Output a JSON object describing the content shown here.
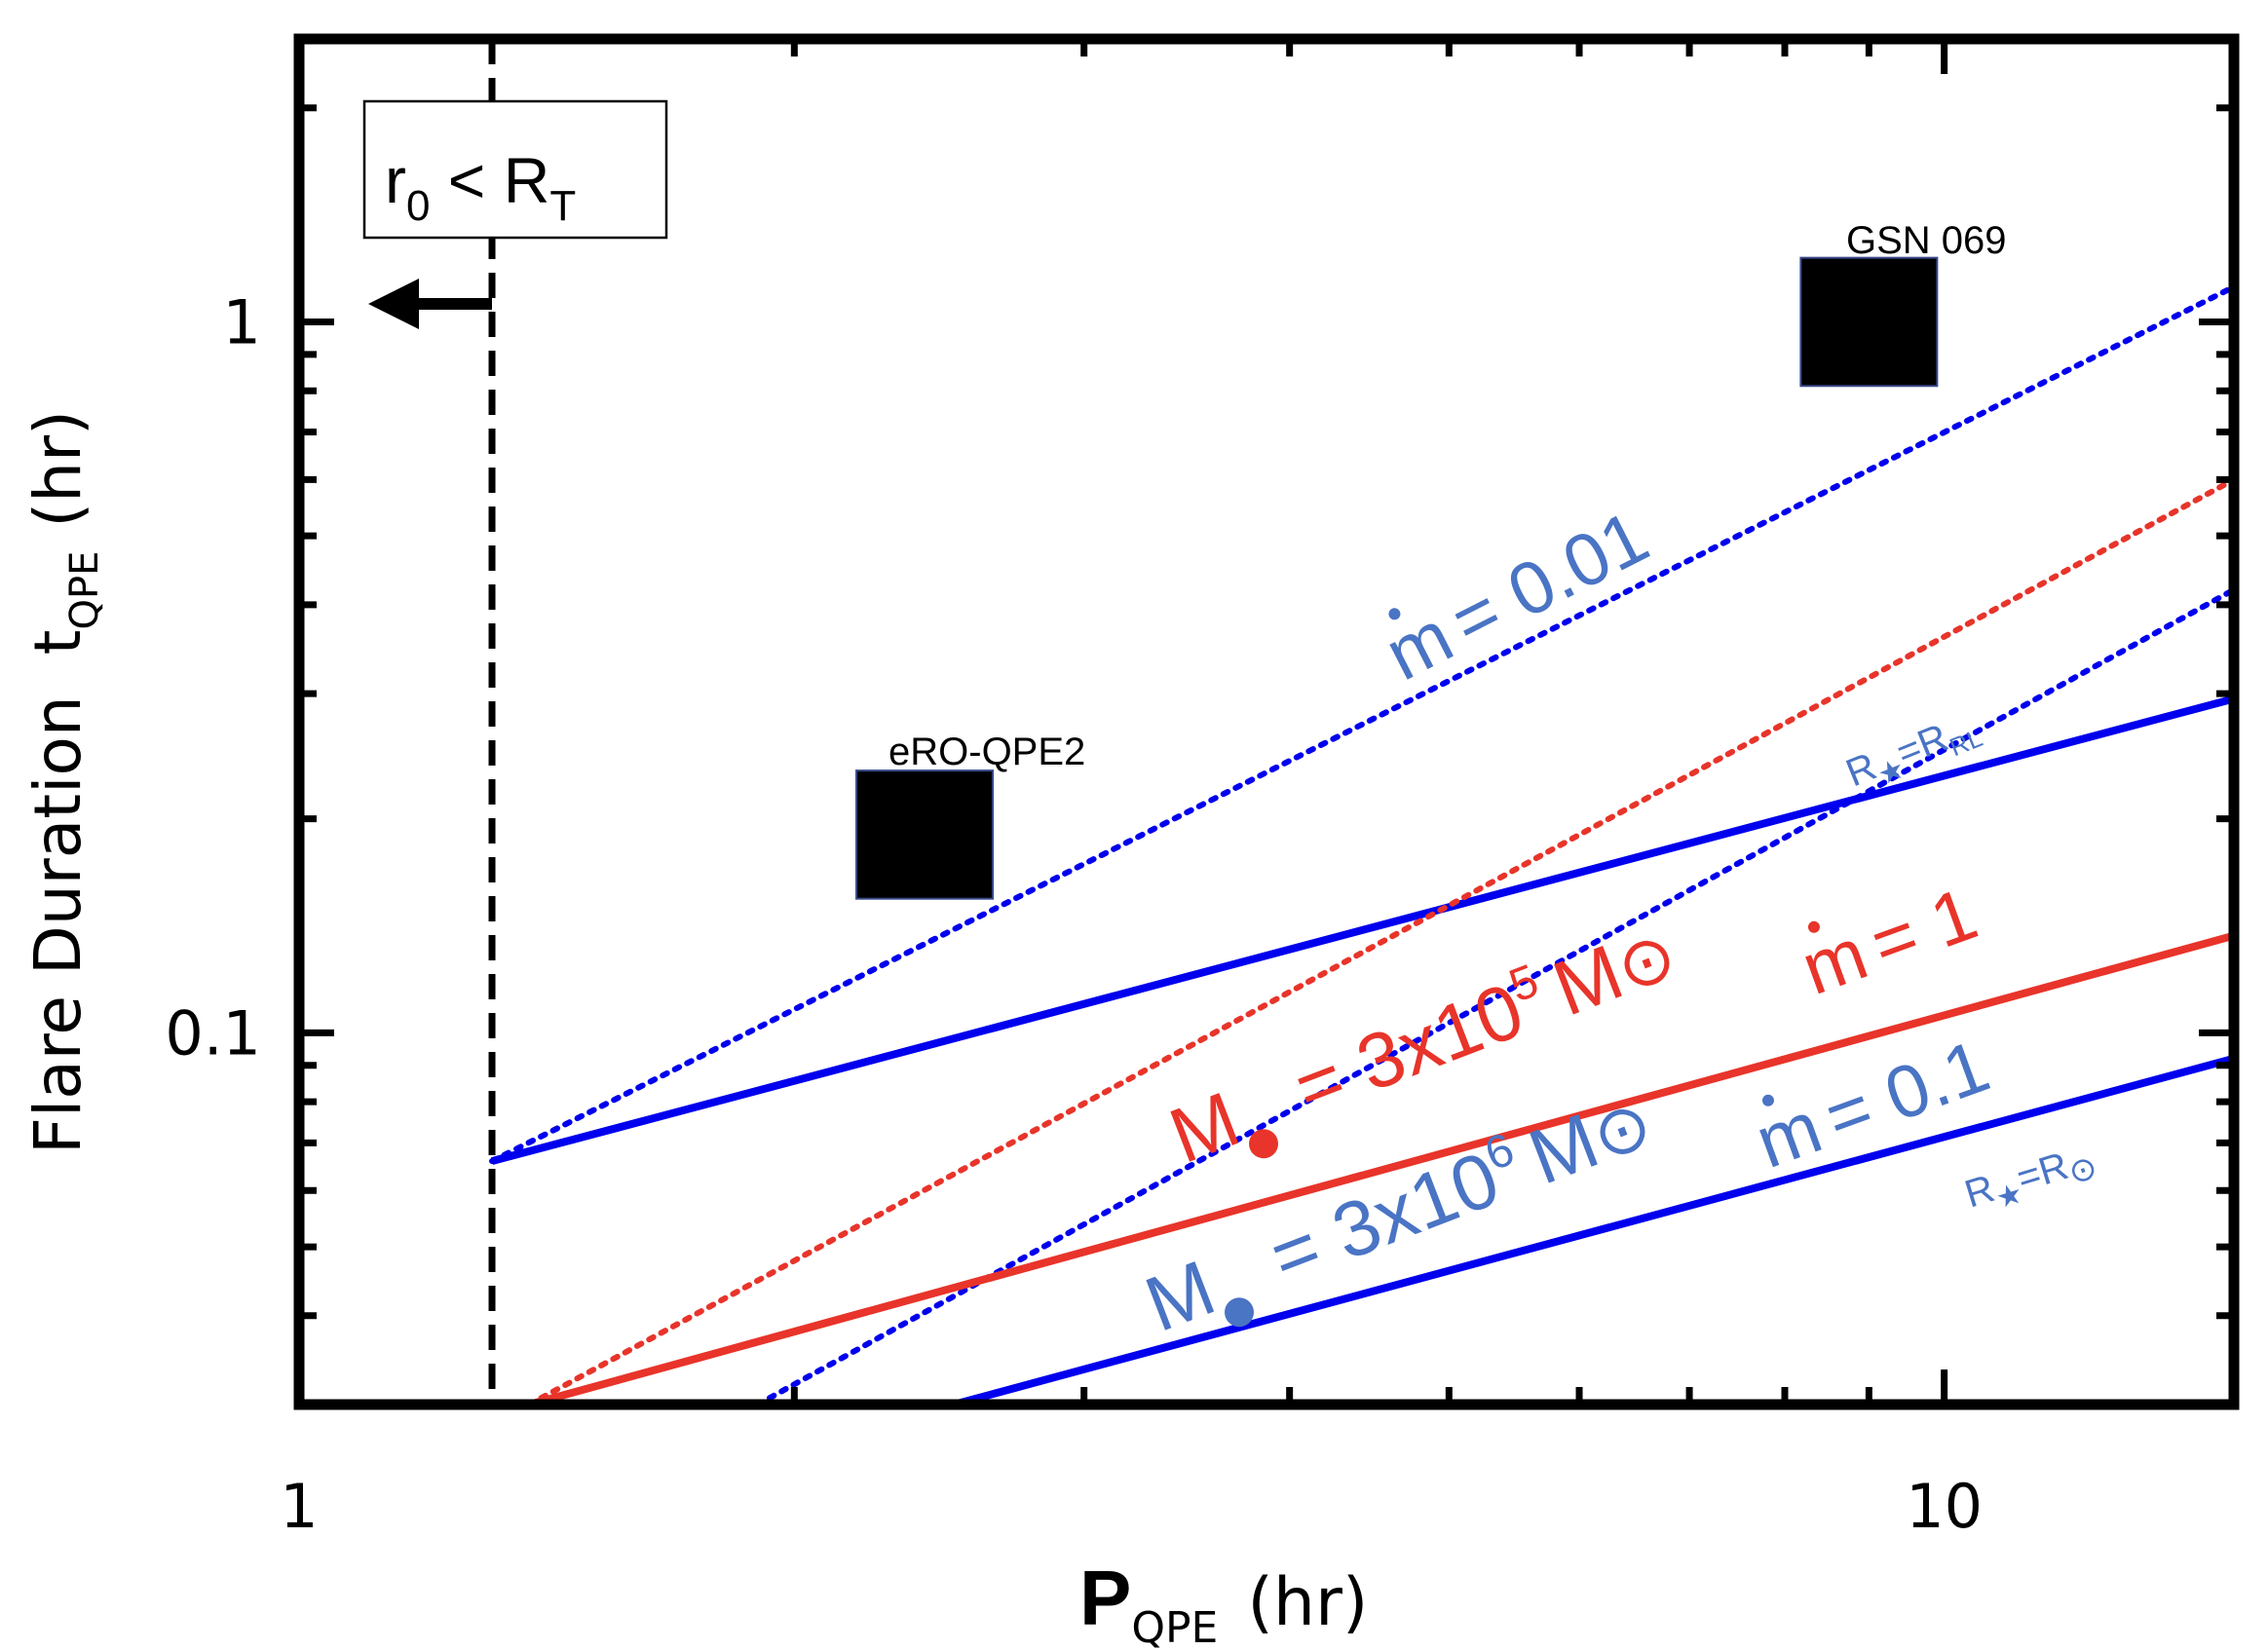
{
  "chart_data": {
    "type": "line",
    "xscale": "log",
    "yscale": "log",
    "xlim": [
      1,
      15
    ],
    "ylim": [
      0.03,
      2.5
    ],
    "xlabel": {
      "main": "P",
      "sub": "QPE",
      "unit": "(hr)"
    },
    "ylabel": {
      "main": "Flare Duration  t",
      "sub": "QPE",
      "unit": "(hr)"
    },
    "x_tick_labels": [
      {
        "value": 1,
        "label": "1"
      },
      {
        "value": 10,
        "label": "10"
      }
    ],
    "y_tick_labels": [
      {
        "value": 0.1,
        "label": "0.1"
      },
      {
        "value": 1,
        "label": "1"
      }
    ],
    "colors": {
      "blue": "#0000ee",
      "red": "#e8342a",
      "lightblue": "#4a74c4",
      "black": "#000000"
    },
    "series": [
      {
        "name": "m_dot_0.01_M3e6",
        "color": "blue",
        "style": "dotted",
        "x": [
          1.31,
          15.0
        ],
        "y": [
          0.066,
          1.12
        ]
      },
      {
        "name": "m_dot_1_M3e6",
        "color": "blue",
        "style": "solid",
        "x": [
          1.31,
          15.0
        ],
        "y": [
          0.066,
          0.295
        ]
      },
      {
        "name": "m_dot_0.1_M3e6",
        "color": "blue",
        "style": "solid",
        "x": [
          2.5,
          15.0
        ],
        "y": [
          0.03,
          0.092
        ]
      },
      {
        "name": "R_star_RRL_M3e6",
        "color": "blue",
        "style": "dotted",
        "x": [
          1.9,
          15.0
        ],
        "y": [
          0.03,
          0.42
        ]
      },
      {
        "name": "m_dot_1_M3e5",
        "color": "red",
        "style": "solid",
        "x": [
          1.38,
          15.0
        ],
        "y": [
          0.03,
          0.137
        ]
      },
      {
        "name": "R_star_RRL_M3e5",
        "color": "red",
        "style": "dotted",
        "x": [
          1.38,
          15.0
        ],
        "y": [
          0.03,
          0.6
        ]
      }
    ],
    "points": [
      {
        "name": "eRO-QPE2",
        "x": 2.4,
        "y": 0.19,
        "marker": "square"
      },
      {
        "name": "GSN 069",
        "x": 9.0,
        "y": 1.0,
        "marker": "square"
      }
    ],
    "vline": {
      "x": 1.31,
      "style": "dashed"
    },
    "constraint_box": {
      "r": "r",
      "r_sub": "0",
      "lt": " < ",
      "R": "R",
      "R_sub": "T"
    },
    "annotations": {
      "mdot_001": "= 0.01",
      "mdot_1": "= 1",
      "mdot_01": "= 0.1",
      "m_letter": "m",
      "mass_red": "= 3x10",
      "mass_red_exp": "5",
      "mass_blue": "= 3x10",
      "mass_blue_exp": "6",
      "M_letter": "M",
      "msun_sym": "⊙",
      "rstar_rl": "=R",
      "rstar_rl_sub": "RL",
      "rstar_rsun": "=R",
      "star_glyph": "★",
      "R_letter": "R"
    }
  }
}
